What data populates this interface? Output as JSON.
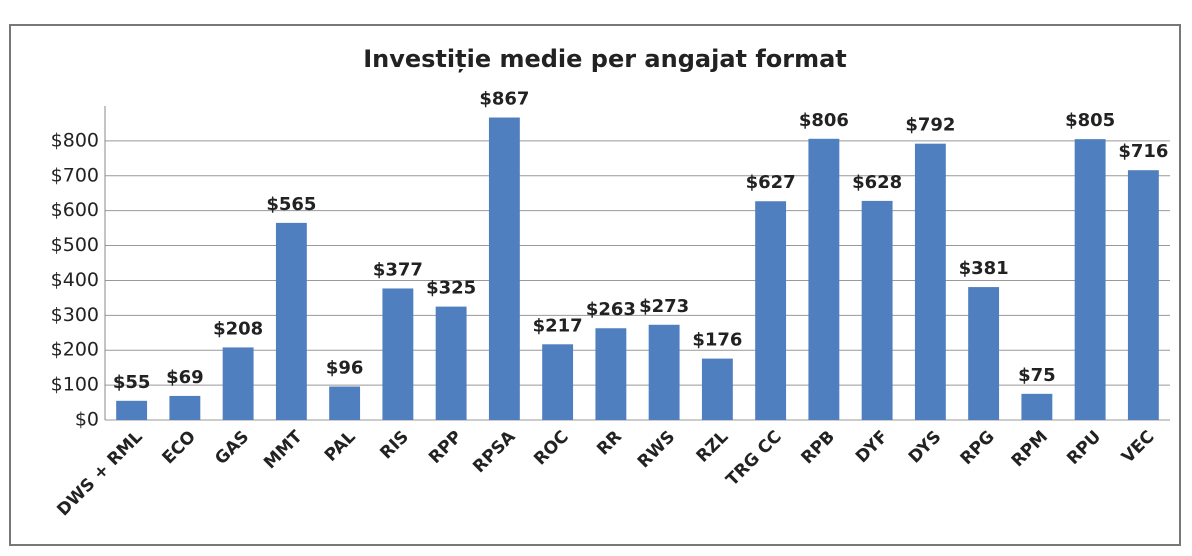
{
  "chart_data": {
    "type": "bar",
    "title": "Investiție medie per angajat format",
    "categories": [
      "DWS + RML",
      "ECO",
      "GAS",
      "MMT",
      "PAL",
      "RIS",
      "RPP",
      "RPSA",
      "ROC",
      "RR",
      "RWS",
      "RZL",
      "TRG CC",
      "RPB",
      "DYF",
      "DYS",
      "RPG",
      "RPM",
      "RPU",
      "VEC"
    ],
    "values": [
      55,
      69,
      208,
      565,
      96,
      377,
      325,
      867,
      217,
      263,
      273,
      176,
      627,
      806,
      628,
      792,
      381,
      75,
      805,
      716
    ],
    "value_labels": [
      "$55",
      "$69",
      "$208",
      "$565",
      "$96",
      "$377",
      "$325",
      "$867",
      "$217",
      "$263",
      "$273",
      "$176",
      "$627",
      "$806",
      "$628",
      "$792",
      "$381",
      "$75",
      "$805",
      "$716"
    ],
    "color": "#4f7fbf",
    "ylim": [
      0,
      900
    ],
    "yticks": [
      {
        "value": 0,
        "label": "$0"
      },
      {
        "value": 100,
        "label": "$100"
      },
      {
        "value": 200,
        "label": "$200"
      },
      {
        "value": 300,
        "label": "$300"
      },
      {
        "value": 400,
        "label": "$400"
      },
      {
        "value": 500,
        "label": "$500"
      },
      {
        "value": 600,
        "label": "$600"
      },
      {
        "value": 700,
        "label": "$700"
      },
      {
        "value": 800,
        "label": "$800"
      }
    ],
    "grid": true
  }
}
